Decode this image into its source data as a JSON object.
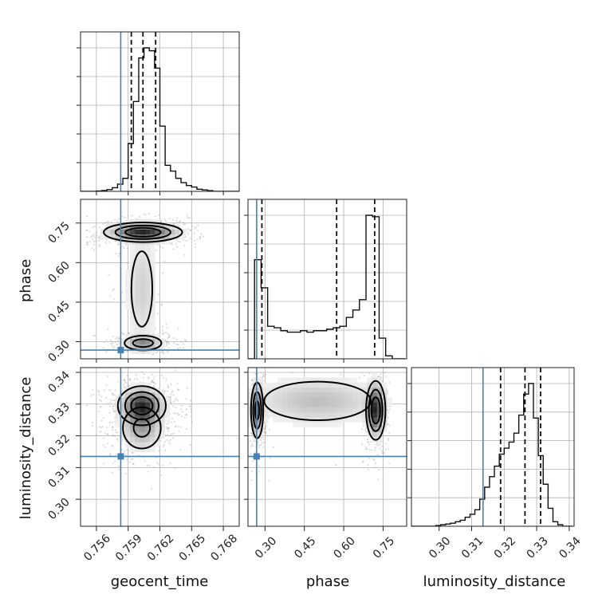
{
  "chart_data": {
    "type": "corner",
    "parameters": [
      "geocent_time",
      "phase",
      "luminosity_distance"
    ],
    "truths": {
      "geocent_time": 0.7583,
      "phase": 0.268,
      "luminosity_distance": 0.3135
    },
    "colors": {
      "truth": "#4682b4",
      "hist": "#111111",
      "contour": "#000000",
      "points": "#9a9a9a"
    },
    "grid": true,
    "axes": {
      "geocent_time": {
        "range": [
          0.7545,
          0.7695
        ],
        "ticks": [
          0.756,
          0.759,
          0.762,
          0.765,
          0.768
        ],
        "tick_labels": [
          "0.756",
          "0.759",
          "0.762",
          "0.765",
          "0.768"
        ],
        "label": "geocent_time"
      },
      "phase": {
        "range": [
          0.235,
          0.84
        ],
        "ticks": [
          0.3,
          0.45,
          0.6,
          0.75
        ],
        "tick_labels": [
          "0.30",
          "0.45",
          "0.60",
          "0.75"
        ],
        "label": "phase"
      },
      "luminosity_distance": {
        "range": [
          0.2915,
          0.3415
        ],
        "ticks": [
          0.3,
          0.31,
          0.32,
          0.33,
          0.34
        ],
        "tick_labels": [
          "0.30",
          "0.31",
          "0.32",
          "0.33",
          "0.34"
        ],
        "label": "luminosity_distance"
      }
    },
    "histograms": {
      "geocent_time": {
        "edges": [
          0.7545,
          0.755,
          0.7555,
          0.756,
          0.7565,
          0.757,
          0.7575,
          0.758,
          0.7585,
          0.759,
          0.7595,
          0.76,
          0.7605,
          0.761,
          0.7615,
          0.762,
          0.7625,
          0.763,
          0.7635,
          0.764,
          0.7645,
          0.765,
          0.7655,
          0.766,
          0.7665,
          0.767,
          0.7675,
          0.768,
          0.7685,
          0.769,
          0.7695
        ],
        "counts": [
          0,
          0,
          0,
          0.2,
          0.6,
          1.2,
          2.5,
          5,
          9,
          33,
          62,
          92,
          99,
          97,
          85,
          45,
          18,
          14,
          9,
          6,
          4,
          3,
          1.5,
          1,
          0.5,
          0,
          0,
          0,
          0,
          0
        ],
        "quantiles": [
          0.7593,
          0.7604,
          0.7616
        ]
      },
      "phase": {
        "edges": [
          0.235,
          0.26,
          0.285,
          0.31,
          0.335,
          0.36,
          0.385,
          0.41,
          0.435,
          0.46,
          0.485,
          0.51,
          0.535,
          0.56,
          0.585,
          0.61,
          0.635,
          0.66,
          0.685,
          0.71,
          0.735,
          0.76,
          0.785,
          0.81,
          0.835
        ],
        "counts": [
          0,
          67,
          48,
          22,
          21,
          19,
          18,
          18,
          19,
          18,
          19,
          19,
          20,
          21,
          22,
          28,
          33,
          40,
          97,
          96,
          14,
          2,
          0,
          0
        ],
        "quantiles": [
          0.288,
          0.573,
          0.718
        ]
      },
      "luminosity_distance": {
        "edges": [
          0.2915,
          0.293,
          0.2945,
          0.296,
          0.2975,
          0.299,
          0.3005,
          0.302,
          0.3035,
          0.305,
          0.3065,
          0.308,
          0.3095,
          0.311,
          0.3125,
          0.314,
          0.3155,
          0.317,
          0.3185,
          0.32,
          0.3215,
          0.323,
          0.3245,
          0.326,
          0.3275,
          0.329,
          0.3305,
          0.332,
          0.3335,
          0.335,
          0.3365,
          0.338,
          0.3395,
          0.341
        ],
        "counts": [
          0,
          0,
          0,
          0,
          0,
          0.5,
          1,
          1.5,
          2,
          3,
          4,
          6,
          8,
          11,
          18,
          26,
          33,
          40,
          48,
          52,
          56,
          62,
          74,
          88,
          95,
          72,
          47,
          28,
          12,
          3,
          1,
          0,
          0
        ],
        "quantiles": [
          0.3189,
          0.3264,
          0.3312
        ]
      }
    },
    "joint": [
      {
        "x": "geocent_time",
        "y": "phase",
        "modes": [
          {
            "x": 0.7604,
            "y": 0.715,
            "sx": 0.0018,
            "sy": 0.018,
            "w": 1.0
          },
          {
            "x": 0.7604,
            "y": 0.295,
            "sx": 0.001,
            "sy": 0.016,
            "w": 0.55
          },
          {
            "x": 0.7603,
            "y": 0.5,
            "sx": 0.0009,
            "sy": 0.13,
            "w": 0.22
          }
        ],
        "scatter_extent": {
          "x": [
            0.755,
            0.7665
          ],
          "y": [
            0.25,
            0.79
          ]
        }
      },
      {
        "x": "geocent_time",
        "y": "luminosity_distance",
        "modes": [
          {
            "x": 0.7603,
            "y": 0.3295,
            "sx": 0.0011,
            "sy": 0.003,
            "w": 1.0
          },
          {
            "x": 0.7603,
            "y": 0.3225,
            "sx": 0.0011,
            "sy": 0.004,
            "w": 0.45
          }
        ],
        "scatter_extent": {
          "x": [
            0.755,
            0.766
          ],
          "y": [
            0.303,
            0.341
          ]
        }
      },
      {
        "x": "phase",
        "y": "luminosity_distance",
        "modes": [
          {
            "x": 0.722,
            "y": 0.328,
            "sx": 0.018,
            "sy": 0.0045,
            "w": 1.0
          },
          {
            "x": 0.27,
            "y": 0.328,
            "sx": 0.012,
            "sy": 0.0045,
            "w": 0.8
          },
          {
            "x": 0.5,
            "y": 0.331,
            "sx": 0.15,
            "sy": 0.0045,
            "w": 0.3
          }
        ],
        "scatter_extent": {
          "x": [
            0.245,
            0.775
          ],
          "y": [
            0.305,
            0.34
          ]
        }
      }
    ]
  }
}
